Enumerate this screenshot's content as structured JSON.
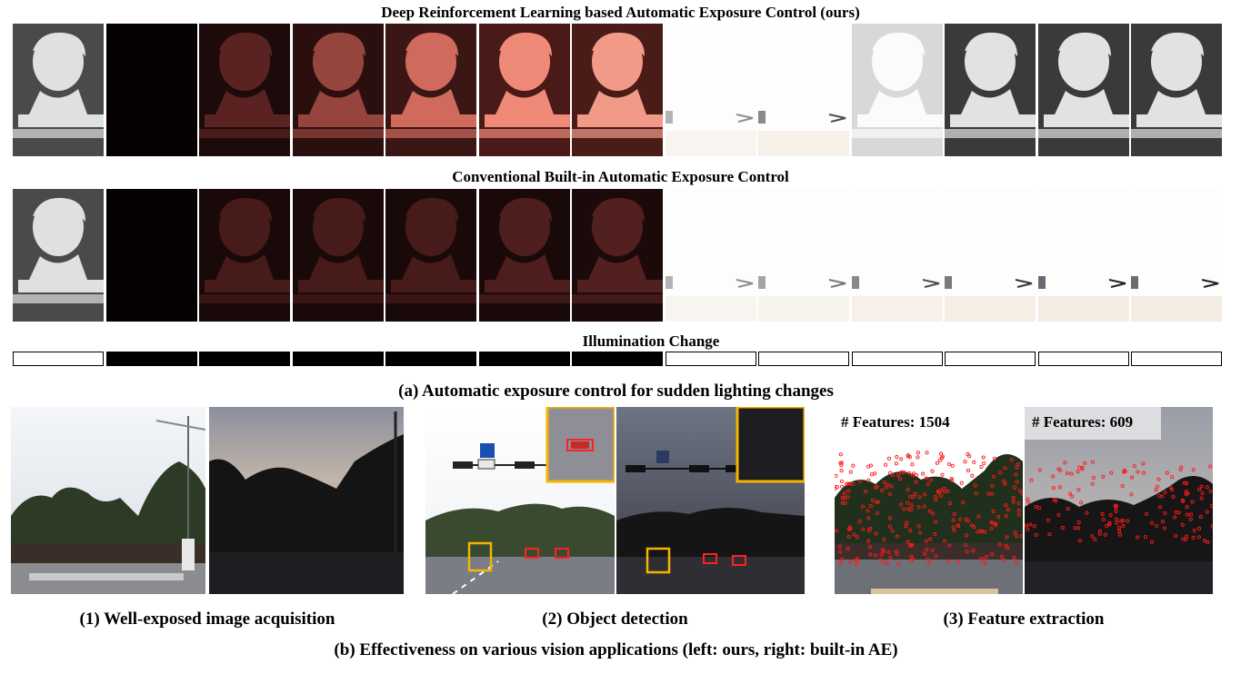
{
  "figure": {
    "row1_title": "Deep Reinforcement Learning based Automatic Exposure Control (ours)",
    "row2_title": "Conventional Built-in Automatic Exposure Control",
    "illumination_title": "Illumination Change",
    "caption_a": "(a) Automatic exposure control for sudden lighting changes",
    "caption_b": "(b) Effectiveness on various vision applications (left: ours, right: built-in AE)"
  },
  "illumination": [
    "bright",
    "dark",
    "dark",
    "dark",
    "dark",
    "dark",
    "dark",
    "bright",
    "bright",
    "bright",
    "bright",
    "bright",
    "bright"
  ],
  "applications": {
    "acquisition": {
      "caption": "(1) Well-exposed image acquisition"
    },
    "detection": {
      "caption": "(2) Object detection"
    },
    "features": {
      "caption": "(3) Feature extraction",
      "left_label": "# Features: 1504",
      "right_label": "# Features: 609"
    }
  },
  "colors": {
    "highlight_yellow": "#f5b400",
    "detection_red": "#ff2020",
    "feature_red": "#ff1a1a"
  }
}
